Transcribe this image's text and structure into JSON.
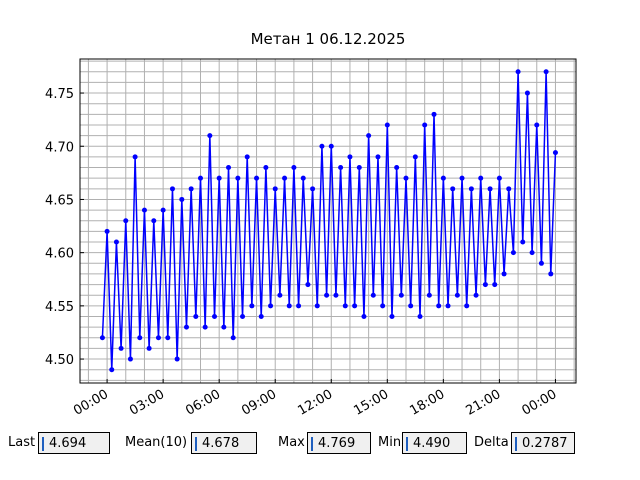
{
  "chart_data": {
    "type": "line",
    "title": "Метан 1 06.12.2025",
    "x": [
      -0.25,
      0,
      0.25,
      0.5,
      0.75,
      1,
      1.25,
      1.5,
      1.75,
      2,
      2.25,
      2.5,
      2.75,
      3,
      3.25,
      3.5,
      3.75,
      4,
      4.25,
      4.5,
      4.75,
      5,
      5.25,
      5.5,
      5.75,
      6,
      6.25,
      6.5,
      6.75,
      7,
      7.25,
      7.5,
      7.75,
      8,
      8.25,
      8.5,
      8.75,
      9,
      9.25,
      9.5,
      9.75,
      10,
      10.25,
      10.5,
      10.75,
      11,
      11.25,
      11.5,
      11.75,
      12,
      12.25,
      12.5,
      12.75,
      13,
      13.25,
      13.5,
      13.75,
      14,
      14.25,
      14.5,
      14.75,
      15,
      15.25,
      15.5,
      15.75,
      16,
      16.25,
      16.5,
      16.75,
      17,
      17.25,
      17.5,
      17.75,
      18,
      18.25,
      18.5,
      18.75,
      19,
      19.25,
      19.5,
      19.75,
      20,
      20.25,
      20.5,
      20.75,
      21,
      21.25,
      21.5,
      21.75,
      22,
      22.25,
      22.5,
      22.75,
      23,
      23.25,
      23.5,
      23.75,
      24
    ],
    "series": [
      {
        "color": "#0000ff",
        "values": [
          4.52,
          4.62,
          4.49,
          4.61,
          4.51,
          4.63,
          4.5,
          4.69,
          4.52,
          4.64,
          4.51,
          4.63,
          4.52,
          4.64,
          4.52,
          4.66,
          4.5,
          4.65,
          4.53,
          4.66,
          4.54,
          4.67,
          4.53,
          4.71,
          4.54,
          4.67,
          4.53,
          4.68,
          4.52,
          4.67,
          4.54,
          4.69,
          4.55,
          4.67,
          4.54,
          4.68,
          4.55,
          4.66,
          4.56,
          4.67,
          4.55,
          4.68,
          4.55,
          4.67,
          4.57,
          4.66,
          4.55,
          4.7,
          4.56,
          4.7,
          4.56,
          4.68,
          4.55,
          4.69,
          4.55,
          4.68,
          4.54,
          4.71,
          4.56,
          4.69,
          4.55,
          4.72,
          4.54,
          4.68,
          4.56,
          4.67,
          4.55,
          4.69,
          4.54,
          4.72,
          4.56,
          4.73,
          4.55,
          4.67,
          4.55,
          4.66,
          4.56,
          4.67,
          4.55,
          4.66,
          4.56,
          4.67,
          4.57,
          4.66,
          4.57,
          4.67,
          4.58,
          4.66,
          4.6,
          4.77,
          4.61,
          4.75,
          4.6,
          4.72,
          4.59,
          4.77,
          4.58,
          4.694
        ]
      }
    ],
    "xlim": [
      -1.45,
      25.1
    ],
    "ylim": [
      4.4775,
      4.782
    ],
    "xticks": [
      {
        "value": 0,
        "label": "00:00"
      },
      {
        "value": 3,
        "label": "03:00"
      },
      {
        "value": 6,
        "label": "06:00"
      },
      {
        "value": 9,
        "label": "09:00"
      },
      {
        "value": 12,
        "label": "12:00"
      },
      {
        "value": 15,
        "label": "15:00"
      },
      {
        "value": 18,
        "label": "18:00"
      },
      {
        "value": 21,
        "label": "21:00"
      },
      {
        "value": 24,
        "label": "00:00"
      }
    ],
    "yticks": [
      {
        "value": 4.5,
        "label": "4.50"
      },
      {
        "value": 4.55,
        "label": "4.55"
      },
      {
        "value": 4.6,
        "label": "4.60"
      },
      {
        "value": 4.65,
        "label": "4.65"
      },
      {
        "value": 4.7,
        "label": "4.70"
      },
      {
        "value": 4.75,
        "label": "4.75"
      }
    ],
    "xminorticks": [
      -1,
      0,
      1,
      2,
      3,
      4,
      5,
      6,
      7,
      8,
      9,
      10,
      11,
      12,
      13,
      14,
      15,
      16,
      17,
      18,
      19,
      20,
      21,
      22,
      23,
      24,
      25
    ],
    "yminorticks": [
      4.48,
      4.49,
      4.5,
      4.51,
      4.52,
      4.53,
      4.54,
      4.55,
      4.56,
      4.57,
      4.58,
      4.59,
      4.6,
      4.61,
      4.62,
      4.63,
      4.64,
      4.65,
      4.66,
      4.67,
      4.68,
      4.69,
      4.7,
      4.71,
      4.72,
      4.73,
      4.74,
      4.75,
      4.76,
      4.77,
      4.78
    ],
    "grid": true
  },
  "stats": [
    {
      "label": "Last",
      "value": "4.694"
    },
    {
      "label": "Mean(10)",
      "value": "4.678"
    },
    {
      "label": "Max",
      "value": "4.769"
    },
    {
      "label": "Min",
      "value": "4.490"
    },
    {
      "label": "Delta",
      "value": "0.2787"
    }
  ]
}
